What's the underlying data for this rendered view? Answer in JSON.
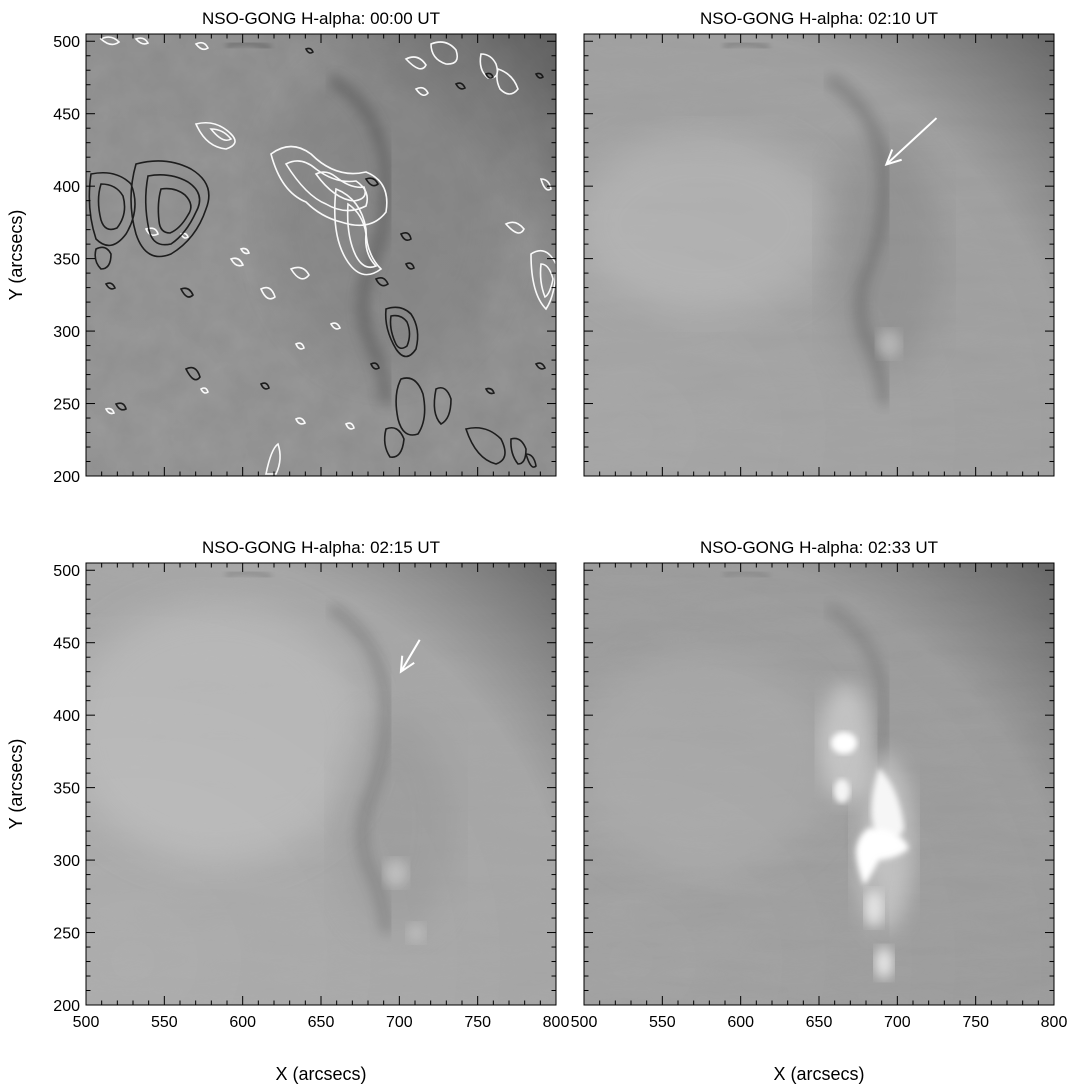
{
  "figure": {
    "axis_labels": {
      "x": "X (arcsecs)",
      "y": "Y (arcsecs)"
    },
    "x_ticks": [
      "500",
      "550",
      "600",
      "650",
      "700",
      "750",
      "800"
    ],
    "y_ticks": [
      "200",
      "250",
      "300",
      "350",
      "400",
      "450",
      "500"
    ],
    "x_range": [
      500,
      800
    ],
    "y_range": [
      200,
      505
    ],
    "panels": [
      {
        "title": "NSO-GONG H-alpha: 00:00 UT",
        "time": "00:00",
        "overlay": "magnetogram-contours",
        "arrow": false
      },
      {
        "title": "NSO-GONG H-alpha: 02:10 UT",
        "time": "02:10",
        "overlay": "none",
        "arrow": true,
        "arrow_tip": [
          693,
          415
        ],
        "arrow_tail": [
          725,
          447
        ]
      },
      {
        "title": "NSO-GONG H-alpha: 02:15 UT",
        "time": "02:15",
        "overlay": "none",
        "arrow": true,
        "arrow_tip": [
          701,
          430
        ],
        "arrow_tail": [
          713,
          452
        ]
      },
      {
        "title": "NSO-GONG H-alpha: 02:33 UT",
        "time": "02:33",
        "overlay": "flare-ribbons",
        "arrow": false
      }
    ],
    "colors": {
      "positive_contour": "#ffffff",
      "negative_contour": "#111111",
      "arrow": "#ffffff"
    }
  }
}
